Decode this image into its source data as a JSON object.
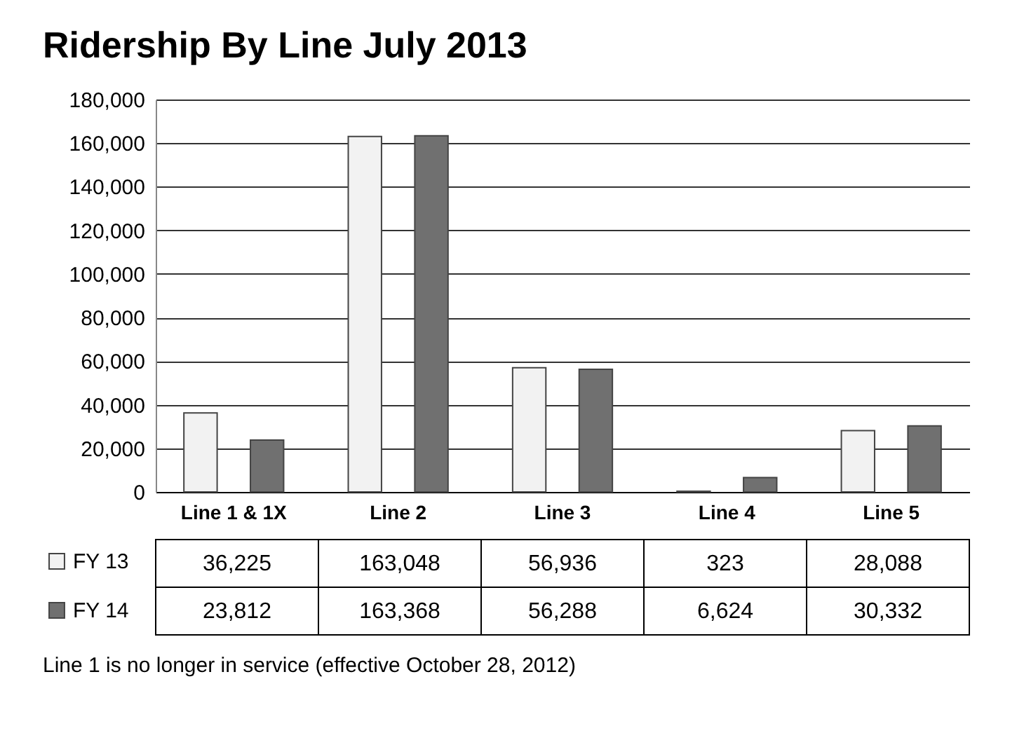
{
  "chart_data": {
    "type": "bar",
    "title": "Ridership By Line July 2013",
    "categories": [
      "Line 1 & 1X",
      "Line 2",
      "Line 3",
      "Line 4",
      "Line 5"
    ],
    "series": [
      {
        "name": "FY 13",
        "color": "#f2f2f2",
        "values": [
          36225,
          163048,
          56936,
          323,
          28088
        ],
        "value_labels": [
          "36,225",
          "163,048",
          "56,936",
          "323",
          "28,088"
        ]
      },
      {
        "name": "FY 14",
        "color": "#707070",
        "values": [
          23812,
          163368,
          56288,
          6624,
          30332
        ],
        "value_labels": [
          "23,812",
          "163,368",
          "56,288",
          "6,624",
          "30,332"
        ]
      }
    ],
    "ylim": [
      0,
      180000
    ],
    "yticks": [
      0,
      {
        "value": 20000,
        "label": "20,000"
      },
      {
        "value": 40000,
        "label": "40,000"
      },
      {
        "value": 60000,
        "label": "60,000"
      },
      {
        "value": 80000,
        "label": "80,000"
      },
      {
        "value": 100000,
        "label": "100,000"
      },
      {
        "value": 120000,
        "label": "120,000"
      },
      {
        "value": 140000,
        "label": "140,000"
      },
      {
        "value": 160000,
        "label": "160,000"
      },
      {
        "value": 180000,
        "label": "180,000"
      }
    ],
    "grid": "y",
    "legend": "bottom left",
    "annotations": [
      "Line 1 is no longer in service (effective October 28, 2012)"
    ]
  }
}
